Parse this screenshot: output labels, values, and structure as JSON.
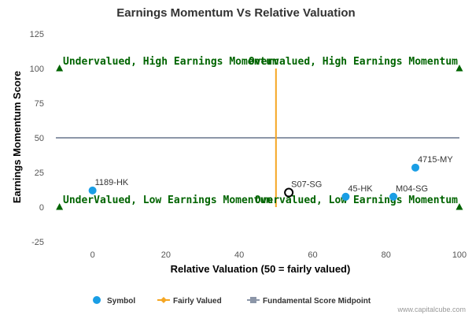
{
  "chart_data": {
    "type": "scatter",
    "title": "Earnings Momentum Vs Relative Valuation",
    "xlabel": "Relative Valuation (50 = fairly valued)",
    "ylabel": "Earnings Momentum Score",
    "xlim": [
      -10,
      100
    ],
    "ylim": [
      -25,
      125
    ],
    "xticks": [
      0,
      20,
      40,
      60,
      80,
      100
    ],
    "yticks": [
      -25,
      0,
      25,
      50,
      75,
      100,
      125
    ],
    "grid": false,
    "legend_position": "bottom",
    "points": [
      {
        "label": "1189-HK",
        "x": 0,
        "y": 12,
        "highlight": false
      },
      {
        "label": "S07-SG",
        "x": 53.5,
        "y": 10.5,
        "highlight": true
      },
      {
        "label": "45-HK",
        "x": 69,
        "y": 7.5,
        "highlight": false
      },
      {
        "label": "M04-SG",
        "x": 82,
        "y": 7.5,
        "highlight": false
      },
      {
        "label": "4715-MY",
        "x": 88,
        "y": 28.5,
        "highlight": false
      }
    ],
    "fairly_valued_line": {
      "x": 50,
      "y_from": 0,
      "y_to": 100
    },
    "midpoint_line": {
      "y": 50
    },
    "quadrant_labels": {
      "top_left": "Undervalued, High Earnings Momentum",
      "top_right": "Overvalued, High Earnings Momentum",
      "bottom_left": "UnderValued, Low Earnings Momentum",
      "bottom_right": "Overvalued, Low Earnings Momentum"
    },
    "corner_markers": [
      {
        "x": -9,
        "y": 100
      },
      {
        "x": 100,
        "y": 100
      },
      {
        "x": -9,
        "y": 0
      },
      {
        "x": 100,
        "y": 0
      }
    ],
    "legend": [
      {
        "name": "Symbol",
        "kind": "dot",
        "color": "#1a9ee5"
      },
      {
        "name": "Fairly Valued",
        "kind": "line-diamond",
        "color": "#f5a623"
      },
      {
        "name": "Fundamental Score Midpoint",
        "kind": "line-square",
        "color": "#8c96a8"
      }
    ],
    "colors": {
      "symbol": "#1a9ee5",
      "fairly_valued": "#f5a623",
      "midpoint": "#8c96a8",
      "quadrant_text": "#006400",
      "marker": "#006400"
    }
  },
  "credit": "www.capitalcube.com"
}
